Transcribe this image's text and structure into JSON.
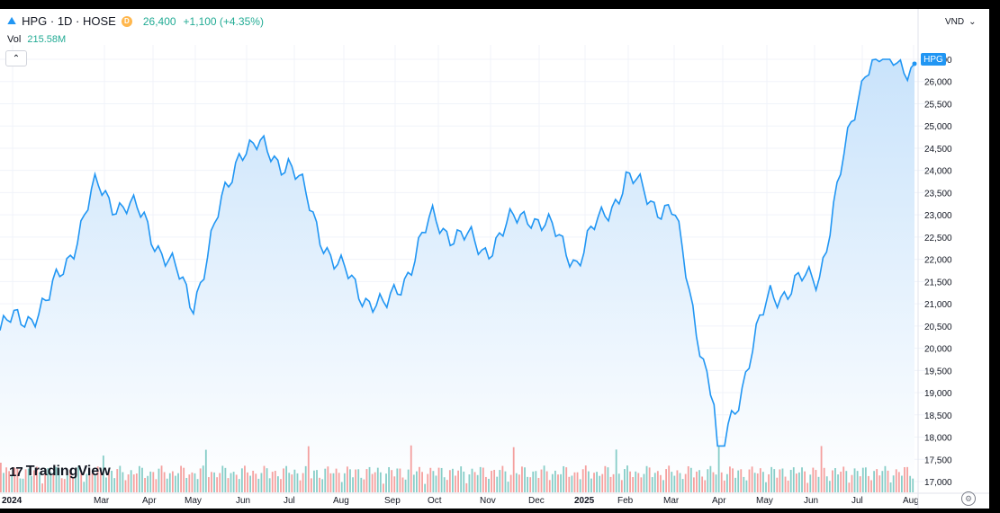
{
  "header": {
    "symbol_line": "HPG · 1D · HOSE",
    "badge": "D",
    "price": "26,400",
    "change": "+1,100 (+4.35%)"
  },
  "volume": {
    "label": "Vol",
    "value": "215.58M"
  },
  "controls": {
    "collapse_glyph": "⌃",
    "currency": "VND",
    "currency_arrow": "⌄",
    "settings_icon": "gear-icon"
  },
  "price_tag": "HPG",
  "logo": {
    "text": "TradingView",
    "mark": "17"
  },
  "colors": {
    "line": "#2196f3",
    "fill_top": "#c9e3fb",
    "fill_bottom": "#ffffff",
    "vol_up": "#26a69a",
    "vol_down": "#ef5350",
    "tag": "#2196f3"
  },
  "chart_data": {
    "type": "area",
    "series": [
      {
        "x": [
          "2024-01",
          "2024-02",
          "2024-03",
          "2024-04",
          "2024-05",
          "2024-06",
          "2024-07",
          "2024-08",
          "2024-09",
          "2024-10",
          "2024-11",
          "2024-12",
          "2025-01",
          "2025-02",
          "2025-03",
          "2025-04",
          "2025-05",
          "2025-06",
          "2025-07",
          "2025-08"
        ],
        "y": [
          20400,
          21000,
          23600,
          22900,
          21000,
          24600,
          24200,
          21800,
          20800,
          22900,
          22200,
          23100,
          22000,
          23800,
          23000,
          17800,
          21200,
          21600,
          26500,
          26400
        ]
      }
    ],
    "x_tick_labels": [
      "2024",
      "Mar",
      "Apr",
      "May",
      "Jun",
      "Jul",
      "Aug",
      "Sep",
      "Oct",
      "Nov",
      "Dec",
      "2025",
      "Feb",
      "Mar",
      "Apr",
      "May",
      "Jun",
      "Jul",
      "Aug"
    ],
    "y_tick_labels": [
      "17,000",
      "17,500",
      "18,000",
      "18,500",
      "19,000",
      "19,500",
      "20,000",
      "20,500",
      "21,000",
      "21,500",
      "22,000",
      "22,500",
      "23,000",
      "23,500",
      "24,000",
      "24,500",
      "25,000",
      "25,500",
      "26,000",
      "26,500"
    ],
    "ylim": [
      17000,
      26500
    ],
    "grid": true
  }
}
